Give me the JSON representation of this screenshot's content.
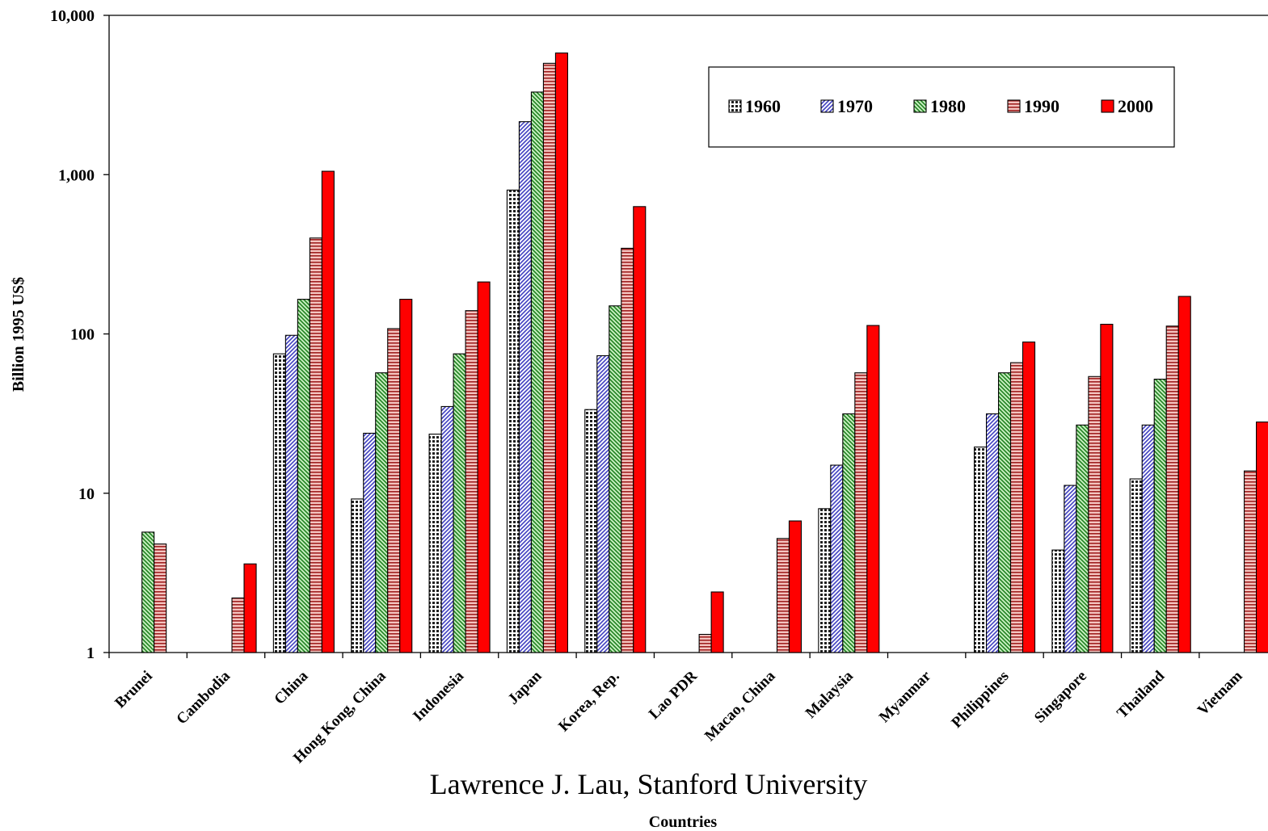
{
  "chart_data": {
    "type": "bar",
    "title": "",
    "xlabel": "Countries",
    "ylabel": "Billion 1995 US$",
    "yscale": "log",
    "ylim": [
      1,
      10000
    ],
    "yticks": [
      1,
      10,
      100,
      1000,
      10000
    ],
    "ytick_labels": [
      "1",
      "10",
      "100",
      "1,000",
      "10,000"
    ],
    "grid": false,
    "legend_position": "top-right",
    "categories": [
      "Brunei",
      "Cambodia",
      "China",
      "Hong Kong, China",
      "Indonesia",
      "Japan",
      "Korea, Rep.",
      "Lao PDR",
      "Macao, China",
      "Malaysia",
      "Myanmar",
      "Philippines",
      "Singapore",
      "Thailand",
      "Vietnam"
    ],
    "series": [
      {
        "name": "1960",
        "color": "#808080",
        "pattern": "dots",
        "values": [
          null,
          null,
          75,
          9.2,
          23.5,
          800,
          33.5,
          null,
          null,
          8,
          null,
          19.5,
          4.4,
          12.3,
          null
        ]
      },
      {
        "name": "1970",
        "color": "#aaaaee",
        "pattern": "diagonal",
        "values": [
          null,
          null,
          98,
          23.8,
          35,
          2150,
          73,
          null,
          null,
          15,
          null,
          31.5,
          11.2,
          26.8,
          null
        ]
      },
      {
        "name": "1980",
        "color": "#a8e6a0",
        "pattern": "diagonal-reverse",
        "values": [
          5.7,
          null,
          165,
          57,
          75,
          3300,
          150,
          null,
          null,
          31.5,
          null,
          57,
          26.8,
          52,
          null
        ]
      },
      {
        "name": "1990",
        "color": "#e8908a",
        "pattern": "horizontal",
        "values": [
          4.8,
          2.2,
          400,
          108,
          140,
          5000,
          345,
          1.3,
          5.2,
          57,
          null,
          66,
          54,
          112,
          13.8
        ]
      },
      {
        "name": "2000",
        "color": "#ff0000",
        "pattern": "solid",
        "values": [
          null,
          3.6,
          1050,
          165,
          212,
          5800,
          630,
          2.4,
          6.7,
          113,
          null,
          89,
          115,
          172,
          28
        ]
      }
    ]
  },
  "footer": {
    "credit": "Lawrence J. Lau, Stanford University"
  }
}
